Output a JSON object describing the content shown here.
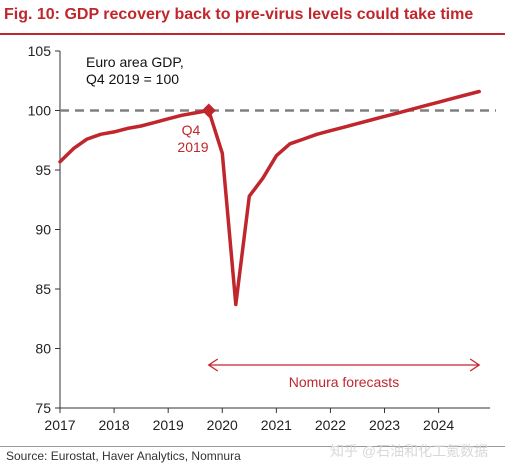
{
  "title": "Fig. 10: GDP recovery back to pre-virus levels could take time",
  "source": "Source: Eurostat, Haver Analytics, Nomnura",
  "watermark": "知乎 @石油和化工氪数据",
  "colors": {
    "accent": "#c0272d",
    "reference_line": "#808080",
    "axis": "#333333"
  },
  "chart_data": {
    "type": "line",
    "annotation": "Euro area GDP,",
    "annotation_line2": "Q4 2019 = 100",
    "marker_label_line1": "Q4",
    "marker_label_line2": "2019",
    "forecast_label": "Nomura forecasts",
    "forecast_range": [
      2019.75,
      2024.75
    ],
    "reference_value": 100,
    "reference_style": "dashed",
    "xlim": [
      2017,
      2024.95
    ],
    "ylim": [
      75,
      105
    ],
    "x_ticks": [
      "2017",
      "2018",
      "2019",
      "2020",
      "2021",
      "2022",
      "2023",
      "2024"
    ],
    "y_ticks": [
      "75",
      "80",
      "85",
      "90",
      "95",
      "100",
      "105"
    ],
    "marker_point": {
      "x": 2019.75,
      "y": 100
    },
    "series": [
      {
        "x": [
          2017.0,
          2017.25,
          2017.5,
          2017.75,
          2018.0,
          2018.25,
          2018.5,
          2018.75,
          2019.0,
          2019.25,
          2019.5,
          2019.75,
          2020.0,
          2020.25,
          2020.5,
          2020.75,
          2021.0,
          2021.25,
          2021.5,
          2021.75,
          2022.0,
          2022.25,
          2022.5,
          2022.75,
          2023.0,
          2023.25,
          2023.5,
          2023.75,
          2024.0,
          2024.25,
          2024.5,
          2024.75
        ],
        "values": [
          95.7,
          96.8,
          97.6,
          98.0,
          98.2,
          98.5,
          98.7,
          99.0,
          99.3,
          99.6,
          99.8,
          100.0,
          96.4,
          83.7,
          92.8,
          94.3,
          96.2,
          97.2,
          97.6,
          98.0,
          98.3,
          98.6,
          98.9,
          99.2,
          99.5,
          99.8,
          100.1,
          100.4,
          100.7,
          101.0,
          101.3,
          101.6
        ]
      }
    ],
    "grid": false,
    "legend": "none"
  }
}
